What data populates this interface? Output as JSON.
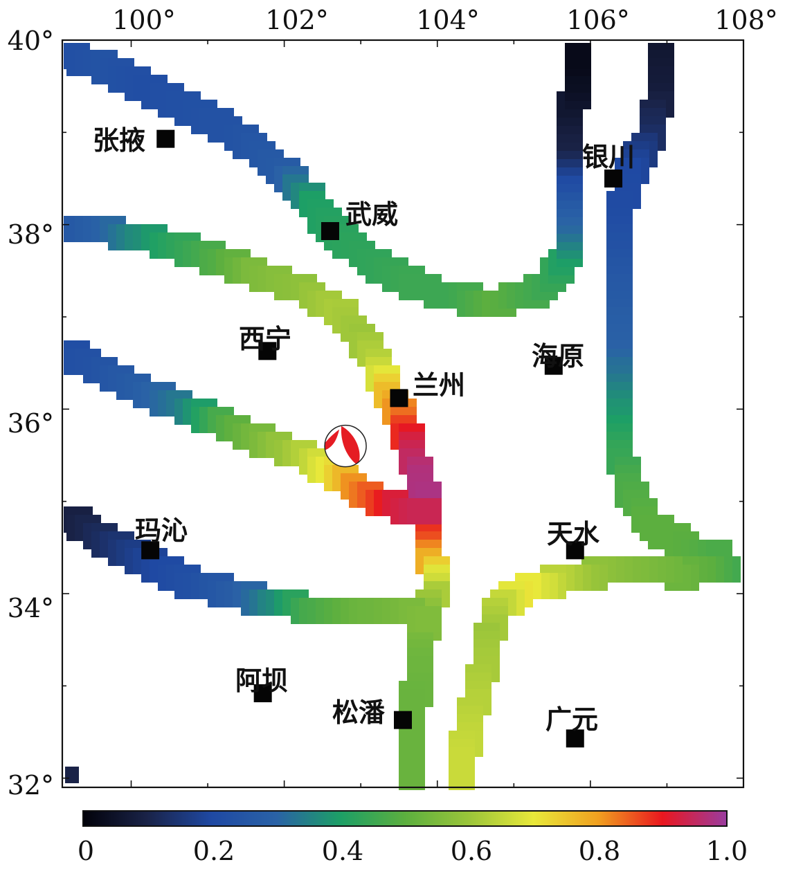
{
  "map": {
    "lon_labels": [
      "100°",
      "102°",
      "104°",
      "106°",
      "108°"
    ],
    "lat_labels": [
      "40°",
      "38°",
      "36°",
      "34°",
      "32°"
    ],
    "colorbar_labels": [
      "0",
      "0.2",
      "0.4",
      "0.6",
      "0.8",
      "1.0"
    ],
    "colorbar_range": [
      0,
      1
    ],
    "cities": [
      {
        "name": "张掖",
        "lon": 100.45,
        "lat": 38.93
      },
      {
        "name": "武威",
        "lon": 102.6,
        "lat": 37.93
      },
      {
        "name": "银川",
        "lon": 106.3,
        "lat": 38.5
      },
      {
        "name": "西宁",
        "lon": 101.78,
        "lat": 36.63
      },
      {
        "name": "兰州",
        "lon": 103.5,
        "lat": 36.12
      },
      {
        "name": "海原",
        "lon": 105.52,
        "lat": 36.47
      },
      {
        "name": "玛沁",
        "lon": 100.25,
        "lat": 34.47
      },
      {
        "name": "天水",
        "lon": 105.8,
        "lat": 34.47
      },
      {
        "name": "阿坝",
        "lon": 101.72,
        "lat": 32.92
      },
      {
        "name": "松潘",
        "lon": 103.55,
        "lat": 32.63
      },
      {
        "name": "广元",
        "lon": 105.8,
        "lat": 32.43
      }
    ],
    "focal_mechanism": {
      "lon": 102.8,
      "lat": 35.6
    },
    "colors": {
      "scale": [
        "#02020a",
        "#1a2348",
        "#1f49a3",
        "#2a62a6",
        "#1d9f66",
        "#5caf3f",
        "#9bc53a",
        "#e8e83a",
        "#f0a020",
        "#e9171f",
        "#9a3ca0"
      ],
      "marker": "#050505",
      "beachball_fill": "#e51c23"
    }
  }
}
